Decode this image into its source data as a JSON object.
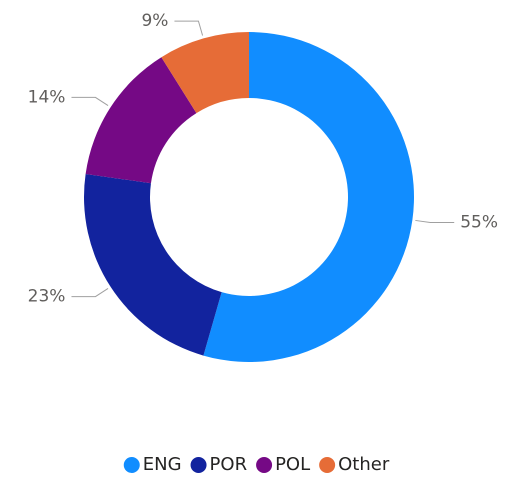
{
  "chart_data": {
    "type": "donut",
    "categories": [
      "ENG",
      "POR",
      "POL",
      "Other"
    ],
    "series": [
      {
        "values": [
          55,
          23,
          14,
          9
        ],
        "value_labels": [
          "55%",
          "23%",
          "14%",
          "9%"
        ],
        "colors": [
          "#118dff",
          "#12239e",
          "#750985",
          "#e66c37"
        ]
      }
    ],
    "legend": "bottom"
  }
}
